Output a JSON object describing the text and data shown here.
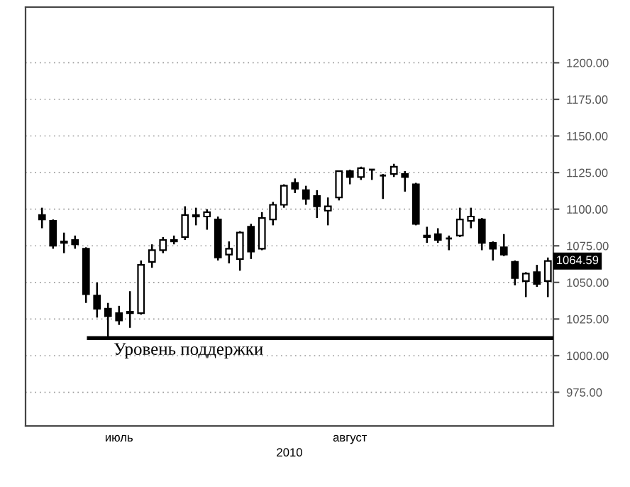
{
  "chart_data": {
    "type": "candlestick",
    "xlabel": "2010",
    "categories": [
      null,
      null,
      null,
      null,
      null,
      null,
      null,
      "июль",
      null,
      null,
      null,
      null,
      null,
      null,
      null,
      null,
      null,
      null,
      null,
      null,
      null,
      null,
      null,
      null,
      null,
      null,
      null,
      null,
      "август",
      null,
      null,
      null,
      null,
      null,
      null,
      null,
      null,
      null,
      null,
      null,
      null,
      null,
      null,
      null,
      null,
      null,
      null
    ],
    "ohlc": [
      [
        1096,
        1101,
        1087,
        1093
      ],
      [
        1092,
        1093,
        1073,
        1075
      ],
      [
        1077,
        1084,
        1070,
        1078
      ],
      [
        1079,
        1082,
        1073,
        1076
      ],
      [
        1073,
        1074,
        1036,
        1042
      ],
      [
        1041,
        1050,
        1026,
        1032
      ],
      [
        1032,
        1036,
        1013,
        1027
      ],
      [
        1029,
        1034,
        1021,
        1024
      ],
      [
        1029,
        1044,
        1019,
        1030
      ],
      [
        1029,
        1065,
        1028,
        1062
      ],
      [
        1064,
        1076,
        1060,
        1072
      ],
      [
        1072,
        1081,
        1070,
        1079
      ],
      [
        1078,
        1082,
        1076,
        1079
      ],
      [
        1081,
        1102,
        1079,
        1096
      ],
      [
        1095,
        1101,
        1089,
        1096
      ],
      [
        1095,
        1100,
        1086,
        1098
      ],
      [
        1093,
        1095,
        1065,
        1067
      ],
      [
        1069,
        1078,
        1063,
        1073
      ],
      [
        1066,
        1085,
        1058,
        1084
      ],
      [
        1088,
        1090,
        1066,
        1071
      ],
      [
        1073,
        1098,
        1072,
        1094
      ],
      [
        1093,
        1105,
        1089,
        1103
      ],
      [
        1103,
        1117,
        1101,
        1116
      ],
      [
        1118,
        1121,
        1111,
        1114
      ],
      [
        1113,
        1116,
        1103,
        1107
      ],
      [
        1109,
        1113,
        1094,
        1102
      ],
      [
        1099,
        1108,
        1089,
        1102
      ],
      [
        1108,
        1126,
        1106,
        1126
      ],
      [
        1126,
        1127,
        1117,
        1122
      ],
      [
        1122,
        1129,
        1120,
        1128
      ],
      [
        1127,
        1127,
        1120,
        1127
      ],
      [
        1123,
        1124,
        1107,
        1123
      ],
      [
        1124,
        1131,
        1122,
        1129
      ],
      [
        1124,
        1126,
        1112,
        1122
      ],
      [
        1117,
        1118,
        1089,
        1090
      ],
      [
        1081,
        1088,
        1077,
        1082
      ],
      [
        1083,
        1087,
        1077,
        1079
      ],
      [
        1080,
        1082,
        1072,
        1080
      ],
      [
        1082,
        1101,
        1081,
        1093
      ],
      [
        1092,
        1101,
        1087,
        1095
      ],
      [
        1093,
        1094,
        1072,
        1077
      ],
      [
        1077,
        1078,
        1065,
        1073
      ],
      [
        1074,
        1083,
        1068,
        1069
      ],
      [
        1064,
        1065,
        1048,
        1053
      ],
      [
        1051,
        1057,
        1040,
        1056
      ],
      [
        1057,
        1062,
        1047,
        1049
      ],
      [
        1051,
        1067,
        1040,
        1064.59
      ]
    ],
    "color": "#000000",
    "ylim": [
      952,
      1238
    ],
    "yticks": [
      {
        "value": 975,
        "label": "975.00"
      },
      {
        "value": 1000,
        "label": "1000.00"
      },
      {
        "value": 1025,
        "label": "1025.00"
      },
      {
        "value": 1050,
        "label": "1050.00"
      },
      {
        "value": 1075,
        "label": "1075.00"
      },
      {
        "value": 1100,
        "label": "1100.00"
      },
      {
        "value": 1125,
        "label": "1125.00"
      },
      {
        "value": 1150,
        "label": "1150.00"
      },
      {
        "value": 1175,
        "label": "1175.00"
      },
      {
        "value": 1200,
        "label": "1200.00"
      }
    ],
    "grid": "y",
    "ref_lines": [
      {
        "axis": "y",
        "value": 1012,
        "label": "Уровень поддержки",
        "color": "#000000"
      }
    ],
    "annotations": [
      {
        "text": "1064.59",
        "y": 1064.59
      }
    ]
  }
}
